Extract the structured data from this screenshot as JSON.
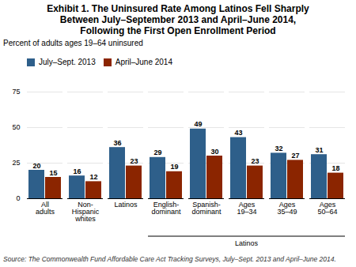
{
  "chart_data": {
    "type": "bar",
    "title": "Exhibit 1. The Uninsured Rate Among Latinos Fell Sharply\nBetween July–September 2013 and April–June 2014,\nFollowing the First Open Enrollment Period",
    "subtitle": "Percent of adults ages 19–64 uninsured",
    "source": "Source: The Commonwealth Fund Affordable Care Act Tracking Surveys, July–Sept. 2013 and April–June 2014.",
    "annotations": [
      "Latinos"
    ],
    "categories": [
      "All\nadults",
      "Non-\nHispanic\nwhites",
      "Latinos",
      "English-\ndominant",
      "Spanish-\ndominant",
      "Ages\n19–34",
      "Ages\n35–49",
      "Ages\n50–64"
    ],
    "series": [
      {
        "name": "July–Sept. 2013",
        "color": "#2E5F8A",
        "values": [
          20,
          16,
          36,
          29,
          49,
          43,
          32,
          31
        ]
      },
      {
        "name": "April–June 2014",
        "color": "#8B2500",
        "values": [
          15,
          12,
          23,
          19,
          30,
          23,
          27,
          18
        ]
      }
    ],
    "ylim": [
      0,
      75
    ],
    "yticks": [
      0,
      25,
      50,
      75
    ],
    "grid": true,
    "legend": "upper left",
    "data_labels": true
  }
}
